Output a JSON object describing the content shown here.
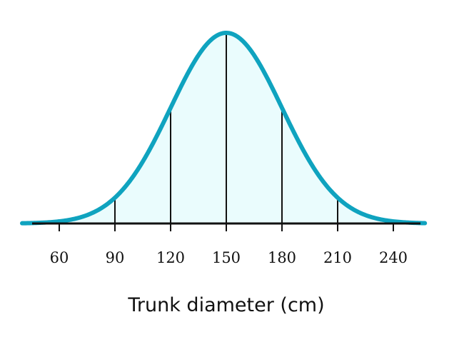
{
  "chart_data": {
    "type": "area",
    "distribution": "normal",
    "mean": 150,
    "sd": 30,
    "xlabel": "Trunk diameter (cm)",
    "ylabel": "",
    "title": "",
    "xlim": [
      40,
      257
    ],
    "x_ticks": [
      60,
      90,
      120,
      150,
      180,
      210,
      240
    ],
    "tick_labels": [
      "60",
      "90",
      "120",
      "150",
      "180",
      "210",
      "240"
    ],
    "sd_markers": [
      90,
      120,
      150,
      180,
      210
    ],
    "grid": false,
    "colors": {
      "curve": "#0fa3bf",
      "fill": "#eafcfd",
      "axis": "#111111",
      "marker_lines": "#111111"
    }
  }
}
